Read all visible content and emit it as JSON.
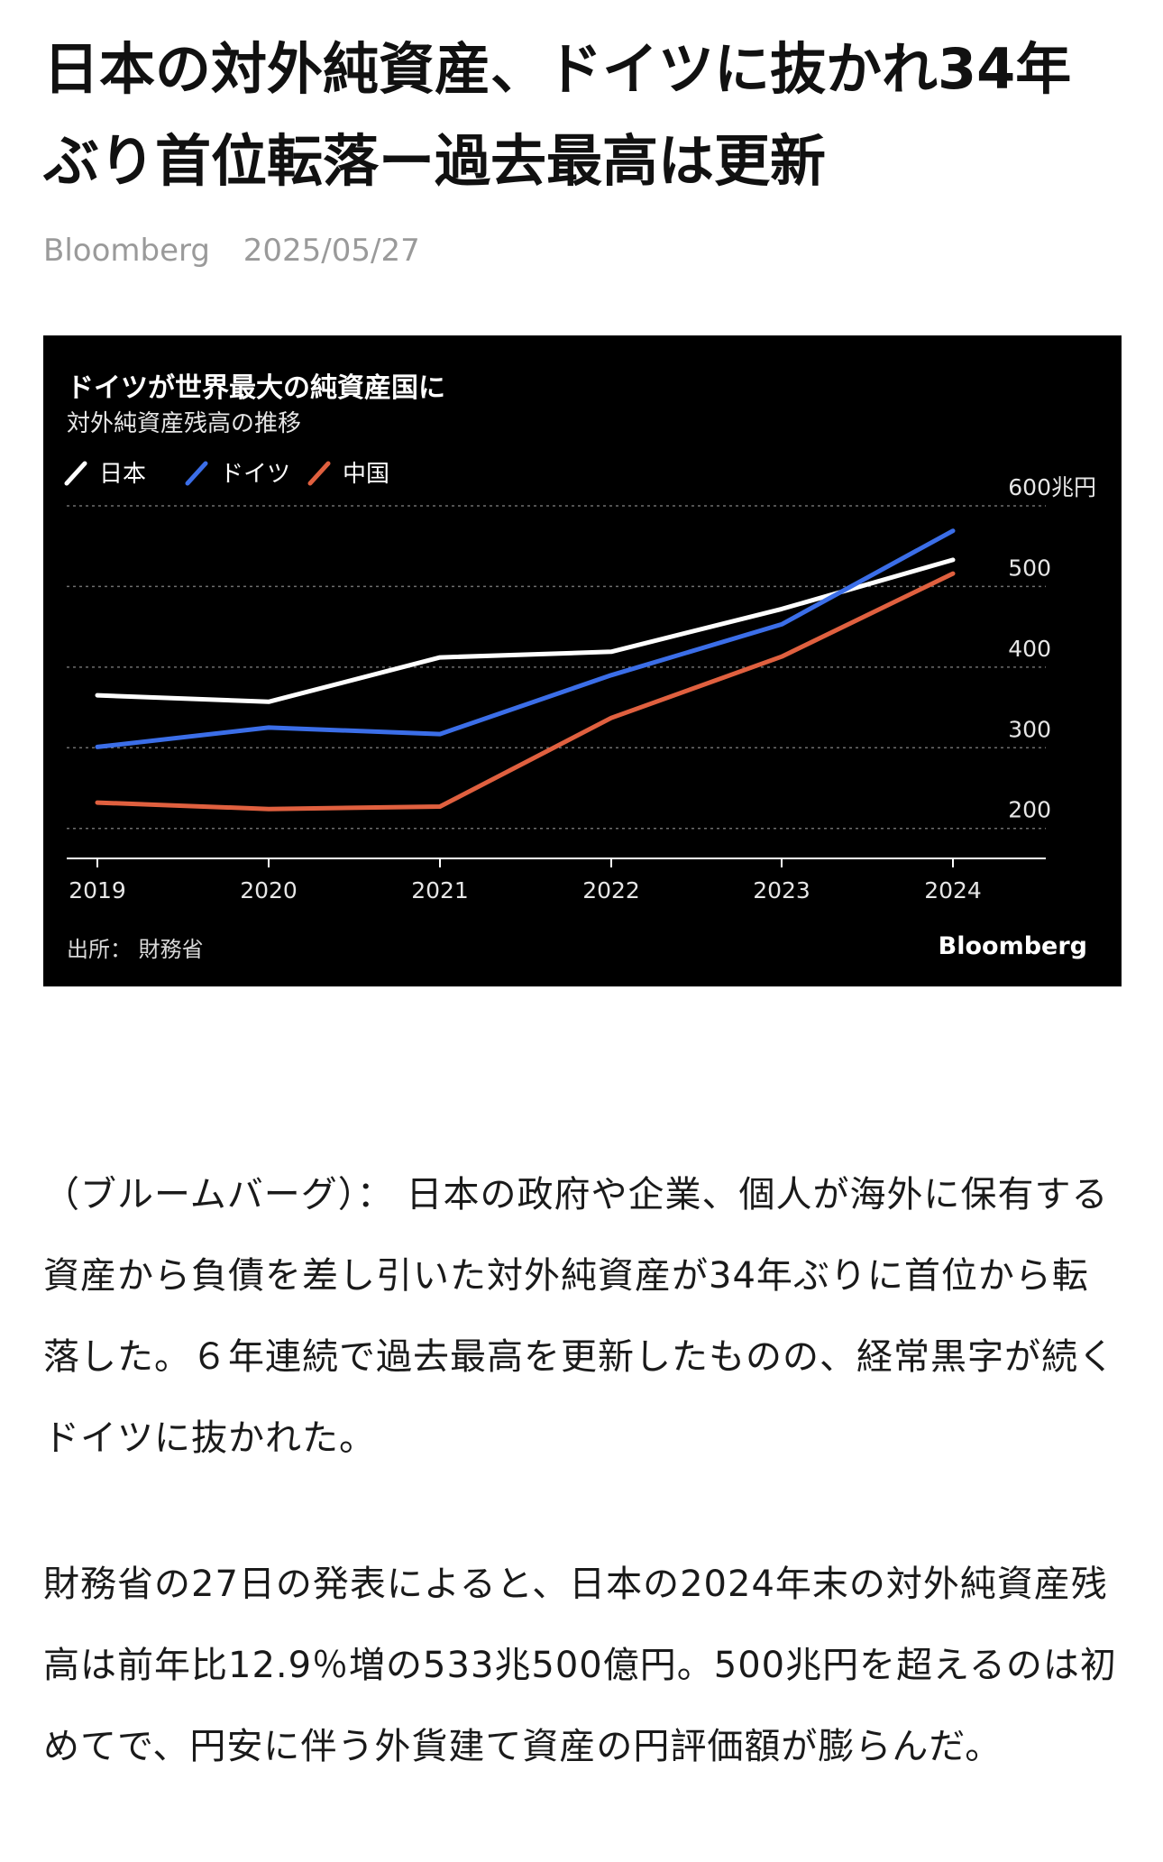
{
  "article": {
    "headline": "日本の対外純資産、ドイツに抜かれ34年ぶり首位転落ー過去最高は更新",
    "source": "Bloomberg",
    "date": "2025/05/27",
    "paragraphs": [
      "（ブルームバーグ）： 日本の政府や企業、個人が海外に保有する資産から負債を差し引いた対外純資産が34年ぶりに首位から転落した。６年連続で過去最高を更新したものの、経常黒字が続くドイツに抜かれた。",
      "財務省の27日の発表によると、日本の2024年末の対外純資産残高は前年比12.9％増の533兆500億円。500兆円を超えるのは初めてで、円安に伴う外貨建て資産の円評価額が膨らんだ。"
    ]
  },
  "chart_data": {
    "type": "line",
    "title": "ドイツが世界最大の純資産国に",
    "subtitle": "対外純資産残高の推移",
    "x": [
      "2019",
      "2020",
      "2021",
      "2022",
      "2023",
      "2024"
    ],
    "series": [
      {
        "name": "日本",
        "color": "#ffffff",
        "values": [
          365,
          357,
          412,
          419,
          472,
          533
        ]
      },
      {
        "name": "ドイツ",
        "color": "#3b6ee8",
        "values": [
          301,
          325,
          317,
          390,
          453,
          569
        ]
      },
      {
        "name": "中国",
        "color": "#e0603f",
        "values": [
          232,
          224,
          227,
          337,
          413,
          516
        ]
      }
    ],
    "y_ticks": [
      "600兆円",
      "500",
      "400",
      "300",
      "200"
    ],
    "y_tick_values": [
      600,
      500,
      400,
      300,
      200
    ],
    "ylim": [
      165,
      610
    ],
    "grid": true,
    "legend_position": "top-left",
    "source_note": "出所： 財務省",
    "brand": "Bloomberg"
  }
}
